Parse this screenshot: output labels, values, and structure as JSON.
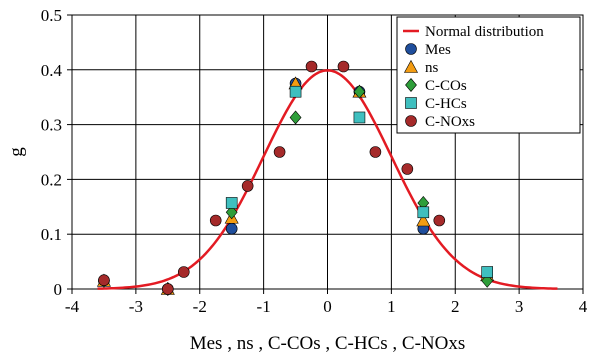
{
  "chart_data": {
    "type": "scatter",
    "title": "",
    "xlabel": "Mes , ns , C-COs , C-HCs , C-NOxs",
    "ylabel": "g",
    "xlim": [
      -4,
      4
    ],
    "ylim": [
      0,
      0.5
    ],
    "x_ticks": [
      "-4",
      "-3",
      "-2",
      "-1",
      "0",
      "1",
      "2",
      "3",
      "4"
    ],
    "y_ticks": [
      "0",
      "0.1",
      "0.2",
      "0.3",
      "0.4",
      "0.5"
    ],
    "grid": true,
    "legend_position": "top-right",
    "curve": {
      "name": "Normal distribution",
      "mean": 0,
      "sd": 1,
      "x_range": [
        -3.6,
        3.6
      ],
      "color": "#e31b23"
    },
    "series": [
      {
        "name": "Mes",
        "marker": "circle",
        "color": "#1f4e9c",
        "points": [
          [
            -3.5,
            0.015
          ],
          [
            -2.5,
            0.0
          ],
          [
            -1.5,
            0.11
          ],
          [
            -0.5,
            0.375
          ],
          [
            0.5,
            0.36
          ],
          [
            1.5,
            0.11
          ],
          [
            2.5,
            0.025
          ]
        ]
      },
      {
        "name": "ns",
        "marker": "triangle",
        "color": "#f39c12",
        "points": [
          [
            -3.5,
            0.015
          ],
          [
            -2.5,
            0.0
          ],
          [
            -1.5,
            0.13
          ],
          [
            -0.5,
            0.375
          ],
          [
            0.5,
            0.36
          ],
          [
            1.5,
            0.125
          ],
          [
            2.5,
            0.025
          ]
        ]
      },
      {
        "name": "C-COs",
        "marker": "diamond",
        "color": "#2e9e3a",
        "points": [
          [
            -3.5,
            0.015
          ],
          [
            -2.5,
            0.0
          ],
          [
            -1.5,
            0.14
          ],
          [
            -0.5,
            0.313
          ],
          [
            0.5,
            0.36
          ],
          [
            1.5,
            0.157
          ],
          [
            2.5,
            0.015
          ]
        ]
      },
      {
        "name": "C-HCs",
        "marker": "square",
        "color": "#3fbfbf",
        "points": [
          [
            -1.5,
            0.157
          ],
          [
            -0.5,
            0.36
          ],
          [
            0.5,
            0.313
          ],
          [
            1.5,
            0.14
          ],
          [
            2.5,
            0.031
          ]
        ]
      },
      {
        "name": "C-NOxs",
        "marker": "circle",
        "color": "#a52a2a",
        "points": [
          [
            -3.5,
            0.016
          ],
          [
            -2.5,
            0.0
          ],
          [
            -2.25,
            0.031
          ],
          [
            -1.75,
            0.125
          ],
          [
            -1.25,
            0.188
          ],
          [
            -0.75,
            0.25
          ],
          [
            -0.25,
            0.406
          ],
          [
            0.25,
            0.406
          ],
          [
            0.75,
            0.25
          ],
          [
            1.25,
            0.219
          ],
          [
            1.75,
            0.125
          ]
        ]
      }
    ]
  }
}
